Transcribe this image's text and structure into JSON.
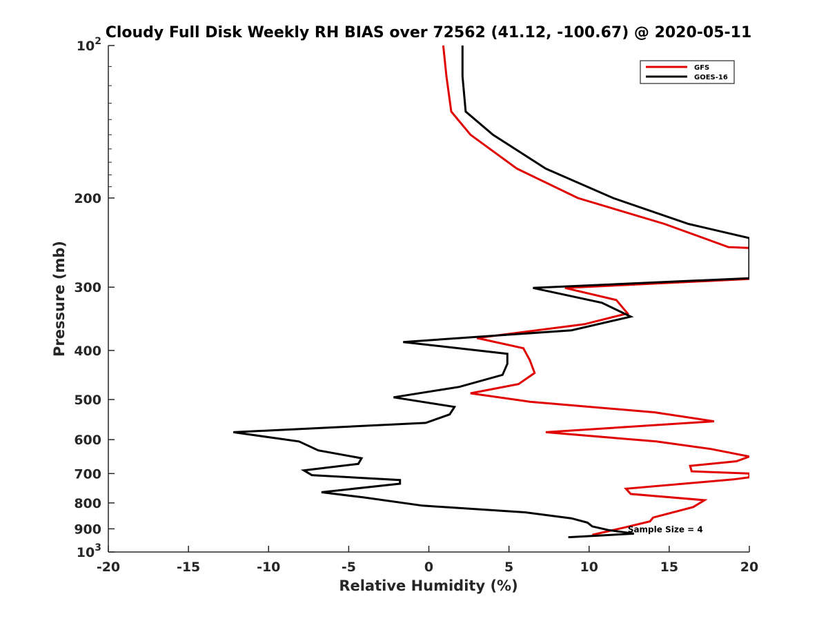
{
  "chart_data": {
    "type": "line",
    "title": "Cloudy Full Disk Weekly RH BIAS over 72562 (41.12, -100.67) @ 2020-05-11",
    "xlabel": "Relative Humidity (%)",
    "ylabel": "Pressure (mb)",
    "xlim": [
      -20,
      20
    ],
    "ylim": [
      100,
      1000
    ],
    "yscale": "log",
    "y_reversed": true,
    "grid": false,
    "legend_position": "top-right",
    "x_ticks": [
      "-20",
      "-15",
      "-10",
      "-5",
      "0",
      "5",
      "10",
      "15",
      "20"
    ],
    "y_ticks": [
      {
        "value": 100,
        "base": "10",
        "exp": "2"
      },
      {
        "value": 200,
        "label": "200"
      },
      {
        "value": 300,
        "label": "300"
      },
      {
        "value": 400,
        "label": "400"
      },
      {
        "value": 500,
        "label": "500"
      },
      {
        "value": 600,
        "label": "600"
      },
      {
        "value": 700,
        "label": "700"
      },
      {
        "value": 800,
        "label": "800"
      },
      {
        "value": 900,
        "label": "900"
      },
      {
        "value": 1000,
        "base": "10",
        "exp": "3"
      }
    ],
    "series": [
      {
        "name": "GFS",
        "color": "#e00000",
        "points": [
          [
            0.9,
            100
          ],
          [
            1.1,
            115
          ],
          [
            1.4,
            135
          ],
          [
            2.6,
            150
          ],
          [
            5.5,
            175
          ],
          [
            9.3,
            200
          ],
          [
            14.7,
            225
          ],
          [
            18.7,
            250
          ],
          [
            20,
            251
          ],
          [
            20,
            289
          ],
          [
            8.5,
            301
          ],
          [
            11.7,
            318
          ],
          [
            12.4,
            338
          ],
          [
            9.7,
            355
          ],
          [
            3.0,
            378
          ],
          [
            5.9,
            396
          ],
          [
            6.3,
            418
          ],
          [
            6.6,
            443
          ],
          [
            5.6,
            466
          ],
          [
            2.6,
            486
          ],
          [
            6.3,
            505
          ],
          [
            14.1,
            530
          ],
          [
            17.8,
            552
          ],
          [
            7.3,
            580
          ],
          [
            14.2,
            605
          ],
          [
            17.6,
            626
          ],
          [
            20,
            648
          ],
          [
            19.2,
            662
          ],
          [
            16.3,
            676
          ],
          [
            16.4,
            693
          ],
          [
            20,
            700
          ],
          [
            20,
            712
          ],
          [
            19.0,
            719
          ],
          [
            12.3,
            750
          ],
          [
            12.6,
            768
          ],
          [
            17.2,
            790
          ],
          [
            16.5,
            815
          ],
          [
            14.0,
            855
          ],
          [
            13.8,
            870
          ],
          [
            12.2,
            895
          ],
          [
            10.2,
            925
          ]
        ]
      },
      {
        "name": "GOES-16",
        "color": "#000000",
        "points": [
          [
            2.1,
            100
          ],
          [
            2.1,
            115
          ],
          [
            2.3,
            135
          ],
          [
            4.0,
            150
          ],
          [
            7.3,
            175
          ],
          [
            11.5,
            200
          ],
          [
            16.2,
            225
          ],
          [
            20,
            240
          ],
          [
            20,
            288
          ],
          [
            6.5,
            301
          ],
          [
            10.8,
            322
          ],
          [
            12.6,
            343
          ],
          [
            8.9,
            365
          ],
          [
            -1.6,
            385
          ],
          [
            4.9,
            406
          ],
          [
            4.9,
            425
          ],
          [
            4.6,
            447
          ],
          [
            1.9,
            472
          ],
          [
            -2.2,
            495
          ],
          [
            1.6,
            517
          ],
          [
            1.3,
            535
          ],
          [
            -0.2,
            556
          ],
          [
            -12.2,
            580
          ],
          [
            -8.1,
            605
          ],
          [
            -6.9,
            630
          ],
          [
            -4.2,
            653
          ],
          [
            -4.4,
            670
          ],
          [
            -7.8,
            690
          ],
          [
            -7.3,
            705
          ],
          [
            -1.8,
            721
          ],
          [
            -1.8,
            733
          ],
          [
            -6.7,
            762
          ],
          [
            -4.1,
            780
          ],
          [
            -0.4,
            810
          ],
          [
            6.0,
            835
          ],
          [
            8.9,
            858
          ],
          [
            9.9,
            875
          ],
          [
            10.2,
            890
          ],
          [
            11.2,
            905
          ],
          [
            12.8,
            920
          ],
          [
            8.7,
            935
          ]
        ]
      }
    ],
    "annotations": [
      {
        "text": "Sample Size = 4",
        "x": 12.5,
        "y": 900
      }
    ]
  }
}
